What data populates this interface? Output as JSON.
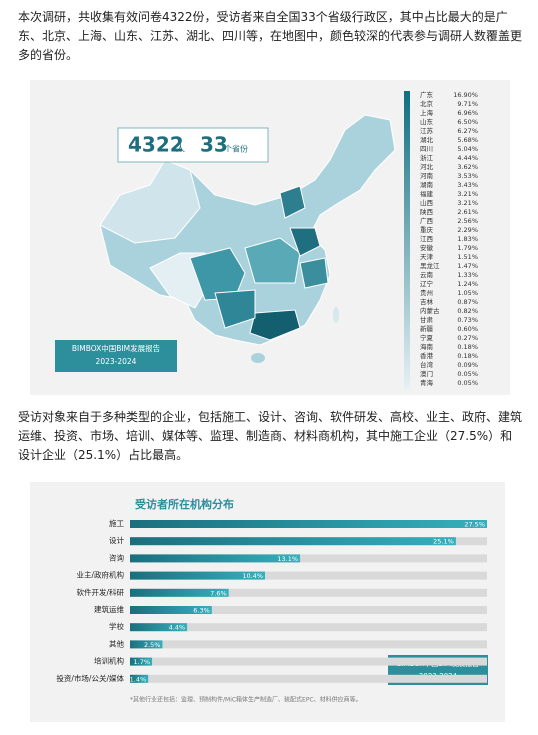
{
  "paragraphs": [
    "本次调研，共收集有效问卷4322份，受访者来自全国33个省级行政区，其中占比最大的是广东、北京、上海、山东、江苏、湖北、四川等，在地图中，颜色较深的代表参与调研人数覆盖更多的省份。",
    "受访对象来自于多种类型的企业，包括施工、设计、咨询、软件研发、高校、业主、政府、建筑运维、投资、市场、培训、媒体等、监理、制造商、材料商机构，其中施工企业（27.5%）和设计企业（25.1%）占比最高。"
  ],
  "map": {
    "stats": {
      "count": "4322",
      "count_unit": "人",
      "provinces": "33",
      "provinces_unit": "个省份"
    },
    "brand": "BIMBOX中国BIM发展报告",
    "years": "2023-2024",
    "legend": [
      {
        "name": "广东",
        "label": "16.90%"
      },
      {
        "name": "北京",
        "label": "9.71%"
      },
      {
        "name": "上海",
        "label": "6.96%"
      },
      {
        "name": "山东",
        "label": "6.50%"
      },
      {
        "name": "江苏",
        "label": "6.27%"
      },
      {
        "name": "湖北",
        "label": "5.68%"
      },
      {
        "name": "四川",
        "label": "5.04%"
      },
      {
        "name": "浙江",
        "label": "4.44%"
      },
      {
        "name": "河北",
        "label": "3.62%"
      },
      {
        "name": "河南",
        "label": "3.53%"
      },
      {
        "name": "湖南",
        "label": "3.43%"
      },
      {
        "name": "福建",
        "label": "3.21%"
      },
      {
        "name": "山西",
        "label": "3.21%"
      },
      {
        "name": "陕西",
        "label": "2.61%"
      },
      {
        "name": "广西",
        "label": "2.56%"
      },
      {
        "name": "重庆",
        "label": "2.29%"
      },
      {
        "name": "江西",
        "label": "1.83%"
      },
      {
        "name": "安徽",
        "label": "1.79%"
      },
      {
        "name": "天津",
        "label": "1.51%"
      },
      {
        "name": "黑龙江",
        "label": "1.47%"
      },
      {
        "name": "云南",
        "label": "1.33%"
      },
      {
        "name": "辽宁",
        "label": "1.24%"
      },
      {
        "name": "贵州",
        "label": "1.05%"
      },
      {
        "name": "吉林",
        "label": "0.87%"
      },
      {
        "name": "内蒙古",
        "label": "0.82%"
      },
      {
        "name": "甘肃",
        "label": "0.73%"
      },
      {
        "name": "新疆",
        "label": "0.60%"
      },
      {
        "name": "宁夏",
        "label": "0.27%"
      },
      {
        "name": "海南",
        "label": "0.18%"
      },
      {
        "name": "香港",
        "label": "0.18%"
      },
      {
        "name": "台湾",
        "label": "0.09%"
      },
      {
        "name": "澳门",
        "label": "0.05%"
      },
      {
        "name": "青海",
        "label": "0.05%"
      }
    ]
  },
  "chart_data": {
    "type": "bar",
    "title": "受访者所在机构分布",
    "categories": [
      "施工",
      "设计",
      "咨询",
      "业主/政府机构",
      "软件开发/科研",
      "建筑运维",
      "学校",
      "其他",
      "培训机构",
      "投资/市场/公关/媒体"
    ],
    "values": [
      27.5,
      25.1,
      13.1,
      10.4,
      7.6,
      6.3,
      4.4,
      2.5,
      1.7,
      1.4
    ],
    "value_labels": [
      "27.5%",
      "25.1%",
      "13.1%",
      "10.4%",
      "7.6%",
      "6.3%",
      "4.4%",
      "2.5%",
      "1.7%",
      "1.4%"
    ],
    "color": "#2493a0",
    "xlim": [
      0,
      27.5
    ],
    "brand": "BIMBOX中国BIM发展报告",
    "years": "2023-2024",
    "note": "*其他行业还包括：监理、预制构件/MiC箱体生产制造厂、装配式EPC、材料供应商等。"
  }
}
